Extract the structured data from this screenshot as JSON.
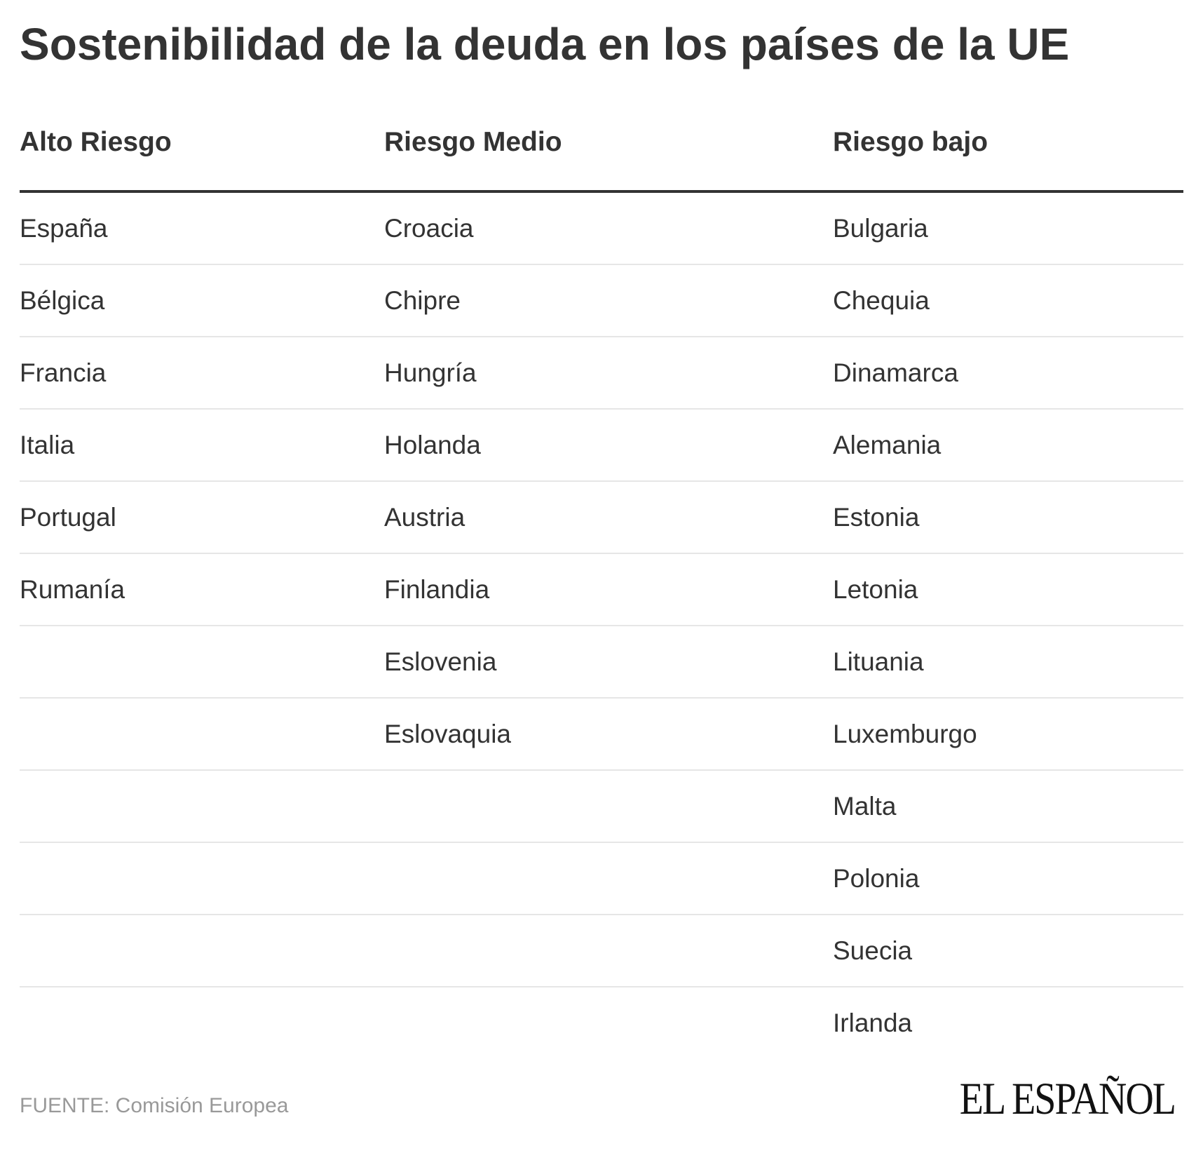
{
  "title": "Sostenibilidad de la deuda en los países de la UE",
  "table": {
    "headers": [
      "Alto Riesgo",
      "Riesgo Medio",
      "Riesgo bajo"
    ],
    "rows": [
      [
        "España",
        "Croacia",
        "Bulgaria"
      ],
      [
        "Bélgica",
        "Chipre",
        "Chequia"
      ],
      [
        "Francia",
        "Hungría",
        "Dinamarca"
      ],
      [
        "Italia",
        "Holanda",
        "Alemania"
      ],
      [
        "Portugal",
        "Austria",
        "Estonia"
      ],
      [
        "Rumanía",
        "Finlandia",
        "Letonia"
      ],
      [
        "",
        "Eslovenia",
        "Lituania"
      ],
      [
        "",
        "Eslovaquia",
        "Luxemburgo"
      ],
      [
        "",
        "",
        "Malta"
      ],
      [
        "",
        "",
        "Polonia"
      ],
      [
        "",
        "",
        "Suecia"
      ],
      [
        "",
        "",
        "Irlanda"
      ]
    ]
  },
  "source": "FUENTE: Comisión Europea",
  "logo": "EL ESPAÑOL"
}
